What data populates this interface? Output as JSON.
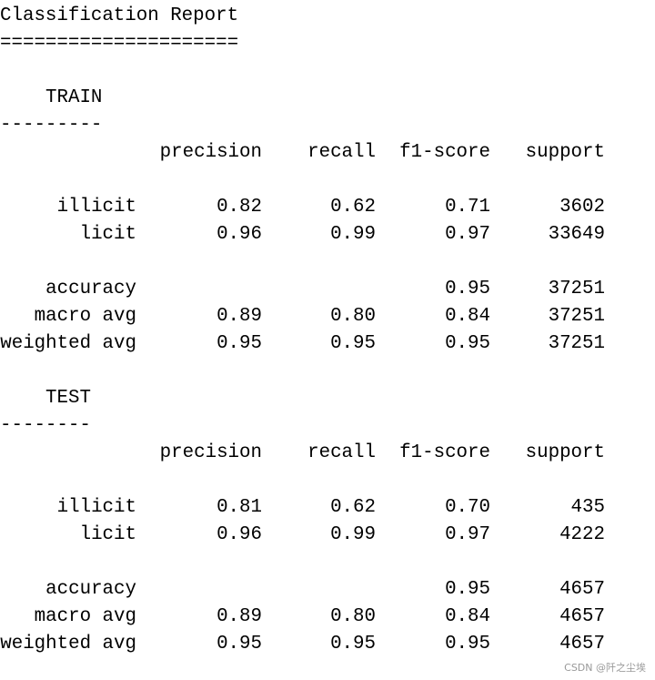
{
  "title": "Classification Report",
  "title_rule": "=====================",
  "sections": [
    {
      "name": "TRAIN",
      "rule": "---------",
      "columns": [
        "precision",
        "recall",
        "f1-score",
        "support"
      ],
      "rows": [
        {
          "label": "illicit",
          "values": [
            "0.82",
            "0.62",
            "0.71",
            "3602"
          ]
        },
        {
          "label": "licit",
          "values": [
            "0.96",
            "0.99",
            "0.97",
            "33649"
          ]
        },
        {
          "label": "accuracy",
          "values": [
            null,
            null,
            "0.95",
            "37251"
          ]
        },
        {
          "label": "macro avg",
          "values": [
            "0.89",
            "0.80",
            "0.84",
            "37251"
          ]
        },
        {
          "label": "weighted avg",
          "values": [
            "0.95",
            "0.95",
            "0.95",
            "37251"
          ]
        }
      ]
    },
    {
      "name": "TEST",
      "rule": "--------",
      "columns": [
        "precision",
        "recall",
        "f1-score",
        "support"
      ],
      "rows": [
        {
          "label": "illicit",
          "values": [
            "0.81",
            "0.62",
            "0.70",
            "435"
          ]
        },
        {
          "label": "licit",
          "values": [
            "0.96",
            "0.99",
            "0.97",
            "4222"
          ]
        },
        {
          "label": "accuracy",
          "values": [
            null,
            null,
            "0.95",
            "4657"
          ]
        },
        {
          "label": "macro avg",
          "values": [
            "0.89",
            "0.80",
            "0.84",
            "4657"
          ]
        },
        {
          "label": "weighted avg",
          "values": [
            "0.95",
            "0.95",
            "0.95",
            "4657"
          ]
        }
      ]
    }
  ],
  "watermark": "CSDN @阡之尘埃"
}
